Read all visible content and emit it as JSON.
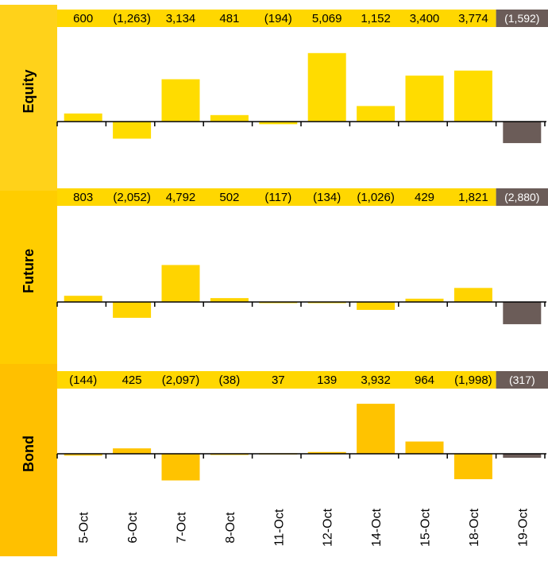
{
  "colors": {
    "panel_label_bg": [
      "#FFD21A",
      "#FFCD00",
      "#FFC000"
    ],
    "value_strip": "#FFD700",
    "value_strip_last": "#6B5C58",
    "bar_equity": "#FFDC00",
    "bar_future": "#FFD400",
    "bar_bond": "#FFC300",
    "bar_last": "#6B5C58",
    "axis": "#000000",
    "label_text": "#000000",
    "value_text": "#000000",
    "value_text_last": "#ffffff"
  },
  "chart_data": {
    "type": "bar",
    "categories": [
      "5-Oct",
      "6-Oct",
      "7-Oct",
      "8-Oct",
      "11-Oct",
      "12-Oct",
      "14-Oct",
      "15-Oct",
      "18-Oct",
      "19-Oct"
    ],
    "panels": [
      {
        "label": "Equity",
        "values": [
          600,
          -1263,
          3134,
          481,
          -194,
          5069,
          1152,
          3400,
          3774,
          -1592
        ],
        "value_labels": [
          "600",
          "(1,263)",
          "3,134",
          "481",
          "(194)",
          "5,069",
          "1,152",
          "3,400",
          "3,774",
          "(1,592)"
        ]
      },
      {
        "label": "Future",
        "values": [
          803,
          -2052,
          4792,
          502,
          -117,
          -134,
          -1026,
          429,
          1821,
          -2880
        ],
        "value_labels": [
          "803",
          "(2,052)",
          "4,792",
          "502",
          "(117)",
          "(134)",
          "(1,026)",
          "429",
          "1,821",
          "(2,880)"
        ]
      },
      {
        "label": "Bond",
        "values": [
          -144,
          425,
          -2097,
          -38,
          37,
          139,
          3932,
          964,
          -1998,
          -317
        ],
        "value_labels": [
          "(144)",
          "425",
          "(2,097)",
          "(38)",
          "37",
          "139",
          "3,932",
          "964",
          "(1,998)",
          "(317)"
        ]
      }
    ],
    "last_bar_highlighted": true
  }
}
